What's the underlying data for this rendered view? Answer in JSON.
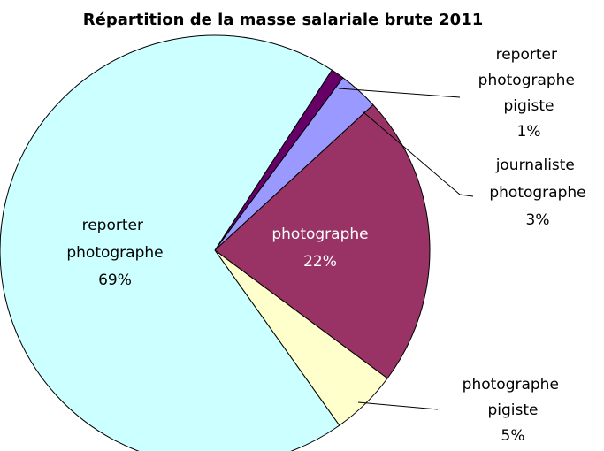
{
  "chart_data": {
    "type": "pie",
    "title": "Répartition de la masse salariale brute 2011",
    "categories": [
      "reporter photographe pigiste",
      "journaliste photographe",
      "photographe",
      "photographe pigiste",
      "reporter photographe"
    ],
    "values": [
      1,
      3,
      22,
      5,
      69
    ],
    "value_labels": [
      "1%",
      "3%",
      "22%",
      "5%",
      "69%"
    ],
    "colors": [
      "#660066",
      "#9999ff",
      "#993366",
      "#ffffcc",
      "#ccffff"
    ]
  }
}
